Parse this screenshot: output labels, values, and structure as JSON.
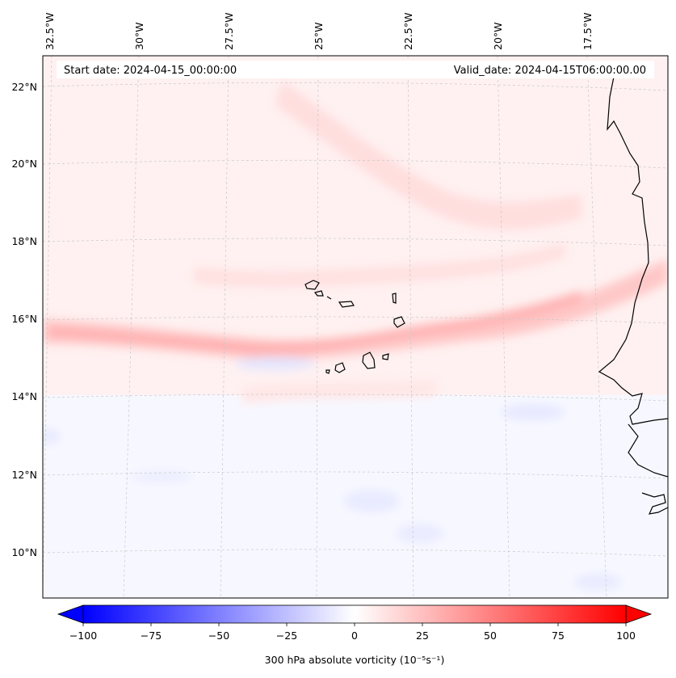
{
  "annotations": {
    "start_date": "Start date: 2024-04-15_00:00:00",
    "valid_date": "Valid_date: 2024-04-15T06:00:00.00"
  },
  "gridlines": {
    "longitude_labels": [
      "32.5°W",
      "30°W",
      "27.5°W",
      "25°W",
      "22.5°W",
      "20°W",
      "17.5°W"
    ],
    "latitude_labels": [
      "22°N",
      "20°N",
      "18°N",
      "16°N",
      "14°N",
      "12°N",
      "10°N"
    ],
    "style": "dashed light gray"
  },
  "colorbar": {
    "tick_labels": [
      "−100",
      "−75",
      "−50",
      "−25",
      "0",
      "25",
      "50",
      "75",
      "100"
    ],
    "min": -100,
    "max": 100,
    "step": 5,
    "extend": "both",
    "colormap": "bwr",
    "label": "300 hPa absolute vorticity (10⁻⁵s⁻¹)"
  },
  "colors": {
    "negative": "#0000ff",
    "neutral": "#ffffff",
    "positive": "#ff0000",
    "coastline": "#000000",
    "grid": "#b0b0b0"
  },
  "features": {
    "islands": "Cape Verde",
    "coast": "West Africa (Senegal / Gambia)"
  }
}
